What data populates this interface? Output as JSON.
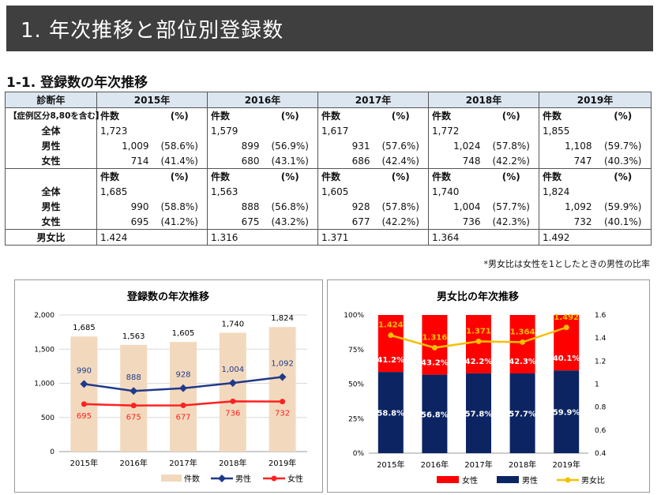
{
  "page_title": "1.  年次推移と部位別登録数",
  "section_title": "1-1.  登録数の年次推移",
  "table": {
    "corner_label": "診断年",
    "sub_label": "【症例区分8,80を含む】",
    "years": [
      "2015年",
      "2016年",
      "2017年",
      "2018年",
      "2019年"
    ],
    "count_label": "件数",
    "pct_label": "(%)",
    "block1": {
      "total_label": "全体",
      "male_label": "男性",
      "female_label": "女性",
      "total": [
        "1,723",
        "1,579",
        "1,617",
        "1,772",
        "1,855"
      ],
      "male": [
        "1,009",
        "899",
        "931",
        "1,024",
        "1,108"
      ],
      "male_pct": [
        "(58.6%)",
        "(56.9%)",
        "(57.6%)",
        "(57.8%)",
        "(59.7%)"
      ],
      "female": [
        "714",
        "680",
        "686",
        "748",
        "747"
      ],
      "female_pct": [
        "(41.4%)",
        "(43.1%)",
        "(42.4%)",
        "(42.2%)",
        "(40.3%)"
      ]
    },
    "block2": {
      "total_label": "全体",
      "male_label": "男性",
      "female_label": "女性",
      "total": [
        "1,685",
        "1,563",
        "1,605",
        "1,740",
        "1,824"
      ],
      "male": [
        "990",
        "888",
        "928",
        "1,004",
        "1,092"
      ],
      "male_pct": [
        "(58.8%)",
        "(56.8%)",
        "(57.8%)",
        "(57.7%)",
        "(59.9%)"
      ],
      "female": [
        "695",
        "675",
        "677",
        "736",
        "732"
      ],
      "female_pct": [
        "(41.2%)",
        "(43.2%)",
        "(42.2%)",
        "(42.3%)",
        "(40.1%)"
      ]
    },
    "ratio_label": "男女比",
    "ratio": [
      "1.424",
      "1.316",
      "1.371",
      "1.364",
      "1.492"
    ],
    "note": "*男女比は女性を1としたときの男性の比率"
  },
  "colors": {
    "banner_bg": "#3f3f3f",
    "header_bg": "#dce6f1",
    "bar_tan": "#f2d9bd",
    "male_navy": "#1f3a8a",
    "female_red": "#ff2020",
    "ratio_gold": "#f5c000",
    "stack_navy": "#0c2461",
    "stack_red": "#ff0000"
  },
  "chart_data": [
    {
      "type": "bar",
      "title": "登録数の年次推移",
      "categories": [
        "2015年",
        "2016年",
        "2017年",
        "2018年",
        "2019年"
      ],
      "ylim": [
        0,
        2000
      ],
      "yticks": [
        0,
        500,
        1000,
        1500,
        2000
      ],
      "ytick_labels": [
        "0",
        "500",
        "1,000",
        "1,500",
        "2,000"
      ],
      "grid": true,
      "legend_position": "bottom-right",
      "series": [
        {
          "name": "件数",
          "kind": "bar",
          "values": [
            1685,
            1563,
            1605,
            1740,
            1824
          ],
          "labels": [
            "1,685",
            "1,563",
            "1,605",
            "1,740",
            "1,824"
          ]
        },
        {
          "name": "男性",
          "kind": "line",
          "values": [
            990,
            888,
            928,
            1004,
            1092
          ],
          "labels": [
            "990",
            "888",
            "928",
            "1,004",
            "1,092"
          ]
        },
        {
          "name": "女性",
          "kind": "line",
          "values": [
            695,
            675,
            677,
            736,
            732
          ],
          "labels": [
            "695",
            "675",
            "677",
            "736",
            "732"
          ]
        }
      ]
    },
    {
      "type": "bar",
      "stacked": true,
      "title": "男女比の年次推移",
      "categories": [
        "2015年",
        "2016年",
        "2017年",
        "2018年",
        "2019年"
      ],
      "ylim": [
        0,
        100
      ],
      "yticks": [
        0,
        25,
        50,
        75,
        100
      ],
      "ytick_labels": [
        "0%",
        "25%",
        "50%",
        "75%",
        "100%"
      ],
      "y2lim": [
        0.4,
        1.6
      ],
      "y2ticks": [
        0.4,
        0.6,
        0.8,
        1.0,
        1.2,
        1.4,
        1.6
      ],
      "y2tick_labels": [
        "0.4",
        "0.6",
        "0.8",
        "1",
        "1.2",
        "1.4",
        "1.6"
      ],
      "legend_position": "bottom",
      "series": [
        {
          "name": "男性",
          "kind": "bar",
          "values": [
            58.8,
            56.8,
            57.8,
            57.7,
            59.9
          ],
          "labels": [
            "58.8%",
            "56.8%",
            "57.8%",
            "57.7%",
            "59.9%"
          ]
        },
        {
          "name": "女性",
          "kind": "bar",
          "values": [
            41.2,
            43.2,
            42.2,
            42.3,
            40.1
          ],
          "labels": [
            "41.2%",
            "43.2%",
            "42.2%",
            "42.3%",
            "40.1%"
          ]
        },
        {
          "name": "男女比",
          "kind": "line",
          "axis": "right",
          "values": [
            1.424,
            1.316,
            1.371,
            1.364,
            1.492
          ],
          "labels": [
            "1.424",
            "1.316",
            "1.371",
            "1.364",
            "1.492"
          ]
        }
      ],
      "legend_order": [
        "女性",
        "男性",
        "男女比"
      ]
    }
  ]
}
